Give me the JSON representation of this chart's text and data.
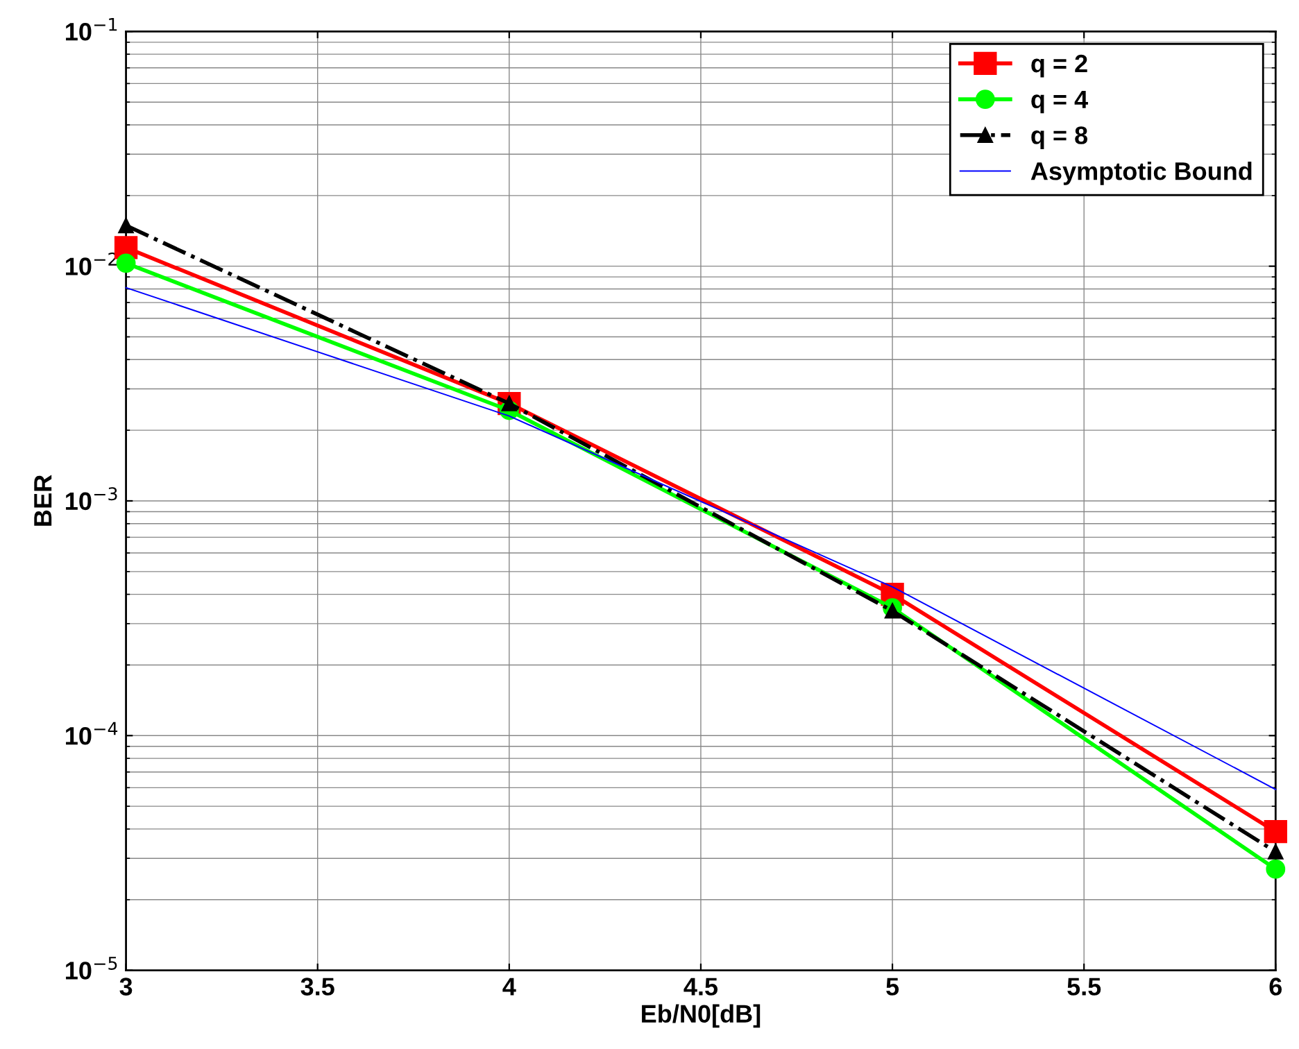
{
  "chart_data": {
    "type": "line",
    "xlabel": "Eb/N0[dB]",
    "ylabel": "BER",
    "log": "y",
    "grid": true,
    "legend": "top right",
    "x": [
      3,
      4,
      5,
      6
    ],
    "xlim": [
      3,
      6
    ],
    "xticks": [
      3,
      3.5,
      4,
      4.5,
      5,
      5.5,
      6
    ],
    "ylim": [
      1e-05,
      0.1
    ],
    "yticks": [
      {
        "value": 1e-05,
        "label": "10$^{−5}$"
      },
      {
        "value": 0.0001,
        "label": "10$^{−4}$"
      },
      {
        "value": 0.001,
        "label": "10$^{−3}$"
      },
      {
        "value": 0.01,
        "label": "10$^{−2}$"
      },
      {
        "value": 0.1,
        "label": "10$^{−1}$"
      }
    ],
    "series": [
      {
        "name": "q = 2",
        "color": "#ff0000",
        "marker": "square",
        "line_style": "solid",
        "values": [
          0.012,
          0.0026,
          0.0004,
          3.9e-05
        ]
      },
      {
        "name": "q = 4",
        "color": "#00ff00",
        "marker": "circle",
        "line_style": "solid",
        "values": [
          0.0103,
          0.00243,
          0.00035,
          2.7e-05
        ]
      },
      {
        "name": "q = 8",
        "color": "#000000",
        "marker": "triangle",
        "line_style": "dashdot",
        "values": [
          0.0149,
          0.0026,
          0.00034,
          3.2e-05
        ]
      },
      {
        "name": "Asymptotic Bound",
        "color": "#0000ff",
        "marker": "none",
        "line_style": "solid",
        "values": [
          0.0081,
          0.0023,
          0.00043,
          5.9e-05
        ]
      }
    ]
  }
}
